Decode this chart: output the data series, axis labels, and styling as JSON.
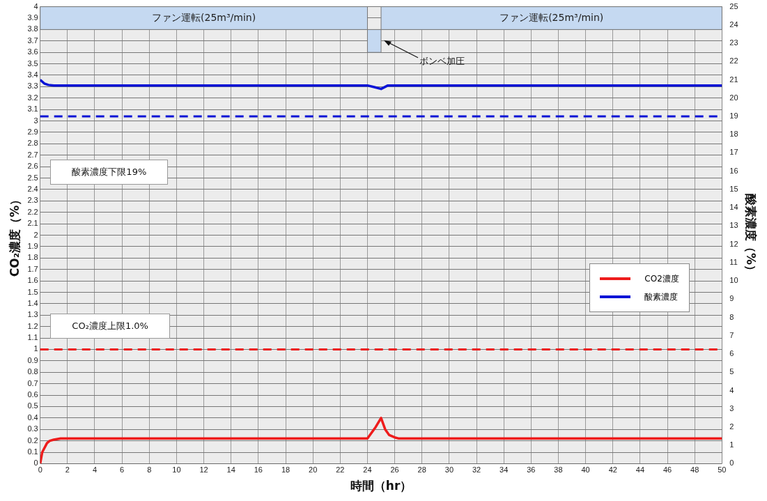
{
  "chart_data": {
    "type": "line",
    "xlabel": "時間（hr）",
    "ylabel": "CO₂濃度（%）",
    "y2label": "酸素濃度（%）",
    "xlim": [
      0,
      50
    ],
    "xticks": [
      0,
      2,
      4,
      6,
      8,
      10,
      12,
      14,
      16,
      18,
      20,
      22,
      24,
      26,
      28,
      30,
      32,
      34,
      36,
      38,
      40,
      42,
      44,
      46,
      48,
      50
    ],
    "ylim": [
      0,
      4
    ],
    "yticks": [
      0,
      0.1,
      0.2,
      0.3,
      0.4,
      0.5,
      0.6,
      0.7,
      0.8,
      0.9,
      1,
      1.1,
      1.2,
      1.3,
      1.4,
      1.5,
      1.6,
      1.7,
      1.8,
      1.9,
      2,
      2.1,
      2.2,
      2.3,
      2.4,
      2.5,
      2.6,
      2.7,
      2.8,
      2.9,
      3,
      3.1,
      3.2,
      3.3,
      3.4,
      3.5,
      3.6,
      3.7,
      3.8,
      3.9,
      4
    ],
    "y2lim": [
      0,
      25
    ],
    "y2ticks": [
      0,
      1,
      2,
      3,
      4,
      5,
      6,
      7,
      8,
      9,
      10,
      11,
      12,
      13,
      14,
      15,
      16,
      17,
      18,
      19,
      20,
      21,
      22,
      23,
      24,
      25
    ],
    "series": [
      {
        "name": "CO2濃度",
        "color": "#ee1c1c",
        "x": [
          0,
          0.15,
          0.5,
          0.7,
          1,
          1.5,
          24,
          24.6,
          25,
          25.3,
          25.6,
          26,
          26.3,
          50
        ],
        "values": [
          0,
          0.1,
          0.18,
          0.2,
          0.21,
          0.22,
          0.22,
          0.32,
          0.4,
          0.3,
          0.25,
          0.23,
          0.22,
          0.22
        ]
      },
      {
        "name": "酸素濃度",
        "color": "#0a14d6",
        "axis": "y2",
        "x": [
          0,
          0.3,
          0.6,
          1,
          24,
          24.5,
          25,
          25.5,
          50
        ],
        "values": [
          21,
          20.8,
          20.72,
          20.69,
          20.69,
          20.6,
          20.5,
          20.69,
          20.69
        ]
      }
    ],
    "ref_lines": [
      {
        "axis": "y",
        "value": 1,
        "color": "#ee1c1c",
        "line_style": "dashed"
      },
      {
        "axis": "y2",
        "value": 19,
        "color": "#0a14d6",
        "line_style": "dashed"
      }
    ],
    "bands": [
      {
        "axis": "x",
        "from": 0,
        "to": 24,
        "label": "ファン運転(25m³/min)",
        "color": "#c5d9f1"
      },
      {
        "axis": "x",
        "from": 24,
        "to": 25,
        "color": "#c5d9f1"
      },
      {
        "axis": "x",
        "from": 25,
        "to": 50,
        "label": "ファン運転(25m³/min)",
        "color": "#c5d9f1"
      }
    ],
    "annotations": [
      "酸素濃度下限19%",
      "CO₂濃度上限1.0%",
      {
        "text": "ボンベ加圧",
        "x": 25,
        "y": 3.7
      }
    ],
    "grid": true,
    "legend": "right",
    "line_style": "solid",
    "marker": "none"
  }
}
